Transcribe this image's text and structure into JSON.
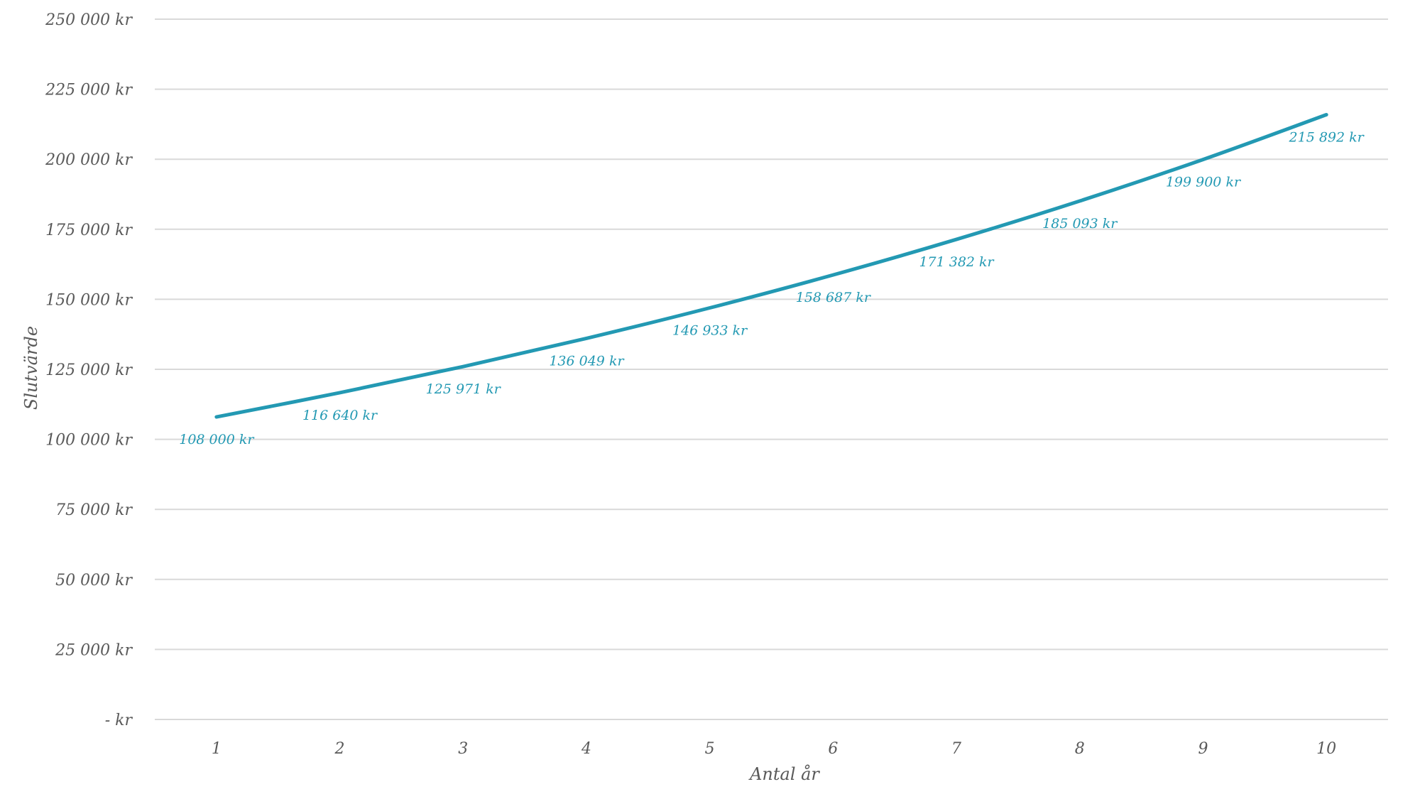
{
  "chart_data": {
    "type": "line",
    "title": "",
    "xlabel": "Antal år",
    "ylabel": "Slutvärde",
    "categories": [
      "1",
      "2",
      "3",
      "4",
      "5",
      "6",
      "7",
      "8",
      "9",
      "10"
    ],
    "series": [
      {
        "values": [
          108000,
          116640,
          125971,
          136049,
          146933,
          158687,
          171382,
          185093,
          199900,
          215892
        ],
        "data_labels": [
          "108 000 kr",
          "116 640 kr",
          "125 971 kr",
          "136 049 kr",
          "146 933 kr",
          "158 687 kr",
          "171 382 kr",
          "185 093 kr",
          "199 900 kr",
          "215 892 kr"
        ],
        "color": "#2399b3"
      }
    ],
    "ylim": [
      0,
      250000
    ],
    "y_ticks": [
      0,
      25000,
      50000,
      75000,
      100000,
      125000,
      150000,
      175000,
      200000,
      225000,
      250000
    ],
    "y_tick_labels": [
      "-  kr",
      "25 000 kr",
      "50 000 kr",
      "75 000 kr",
      "100 000 kr",
      "125 000 kr",
      "150 000 kr",
      "175 000 kr",
      "200 000 kr",
      "225 000 kr",
      "250 000 kr"
    ],
    "grid": true,
    "legend": "none",
    "colors": {
      "grid": "#d9d9d9",
      "tick_text": "#595959",
      "series": "#2399b3"
    }
  }
}
